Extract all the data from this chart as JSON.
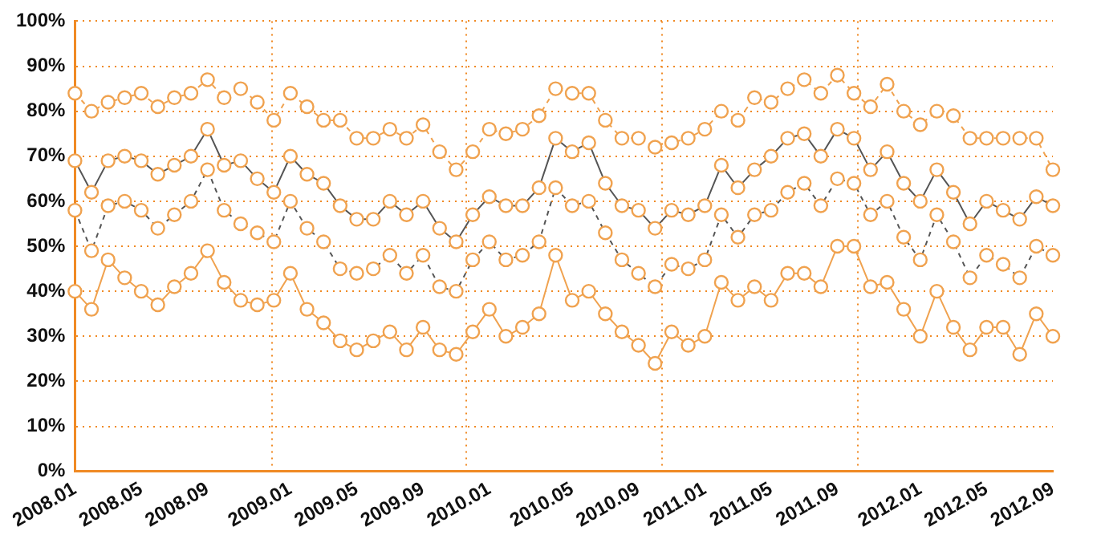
{
  "chart_data": {
    "type": "line",
    "categories": [
      "2008.01",
      null,
      null,
      null,
      "2008.05",
      null,
      null,
      null,
      "2008.09",
      null,
      null,
      null,
      null,
      "2009.01",
      null,
      null,
      null,
      "2009.05",
      null,
      null,
      null,
      "2009.09",
      null,
      null,
      null,
      "2010.01",
      null,
      null,
      null,
      null,
      "2010.05",
      null,
      null,
      null,
      "2010.09",
      null,
      null,
      null,
      "2011.01",
      null,
      null,
      null,
      "2011.05",
      null,
      null,
      null,
      "2011.09",
      null,
      null,
      null,
      null,
      "2012.01",
      null,
      null,
      null,
      "2012.05",
      null,
      null,
      null,
      "2012.09"
    ],
    "series": [
      {
        "color": "#f0a24f",
        "line_style": "dashed",
        "values": [
          84,
          80,
          82,
          83,
          84,
          81,
          83,
          84,
          87,
          83,
          85,
          82,
          78,
          84,
          81,
          78,
          78,
          74,
          74,
          76,
          74,
          77,
          71,
          67,
          71,
          76,
          75,
          76,
          79,
          85,
          84,
          84,
          78,
          74,
          74,
          72,
          73,
          74,
          76,
          80,
          78,
          83,
          82,
          85,
          87,
          84,
          88,
          84,
          81,
          86,
          80,
          77,
          80,
          79,
          74,
          74,
          74,
          74,
          74,
          67
        ]
      },
      {
        "color": "#555555",
        "line_style": "solid",
        "values": [
          69,
          62,
          69,
          70,
          69,
          66,
          68,
          70,
          76,
          68,
          69,
          65,
          62,
          70,
          66,
          64,
          59,
          56,
          56,
          60,
          57,
          60,
          54,
          51,
          57,
          61,
          59,
          59,
          63,
          74,
          71,
          73,
          64,
          59,
          58,
          54,
          58,
          57,
          59,
          68,
          63,
          67,
          70,
          74,
          75,
          70,
          76,
          74,
          67,
          71,
          64,
          60,
          67,
          62,
          55,
          60,
          58,
          56,
          61,
          59
        ]
      },
      {
        "color": "#555555",
        "line_style": "dashed",
        "values": [
          58,
          49,
          59,
          60,
          58,
          54,
          57,
          60,
          67,
          58,
          55,
          53,
          51,
          60,
          54,
          51,
          45,
          44,
          45,
          48,
          44,
          48,
          41,
          40,
          47,
          51,
          47,
          48,
          51,
          63,
          59,
          60,
          53,
          47,
          44,
          41,
          46,
          45,
          47,
          57,
          52,
          57,
          58,
          62,
          64,
          59,
          65,
          64,
          57,
          60,
          52,
          47,
          57,
          51,
          43,
          48,
          46,
          43,
          50,
          48
        ]
      },
      {
        "color": "#f0a24f",
        "line_style": "solid",
        "values": [
          40,
          36,
          47,
          43,
          40,
          37,
          41,
          44,
          49,
          42,
          38,
          37,
          38,
          44,
          36,
          33,
          29,
          27,
          29,
          31,
          27,
          32,
          27,
          26,
          31,
          36,
          30,
          32,
          35,
          48,
          38,
          40,
          35,
          31,
          28,
          24,
          31,
          28,
          30,
          42,
          38,
          41,
          38,
          44,
          44,
          41,
          50,
          50,
          41,
          42,
          36,
          30,
          40,
          32,
          27,
          32,
          32,
          26,
          35,
          30
        ]
      }
    ],
    "ylim": [
      0,
      100
    ],
    "yticks": [
      {
        "value": 0,
        "label": "0%"
      },
      {
        "value": 10,
        "label": "10%"
      },
      {
        "value": 20,
        "label": "20%"
      },
      {
        "value": 30,
        "label": "30%"
      },
      {
        "value": 40,
        "label": "40%"
      },
      {
        "value": 50,
        "label": "50%"
      },
      {
        "value": 60,
        "label": "60%"
      },
      {
        "value": 70,
        "label": "70%"
      },
      {
        "value": 80,
        "label": "80%"
      },
      {
        "value": 90,
        "label": "90%"
      },
      {
        "value": 100,
        "label": "100%"
      }
    ],
    "grid": true,
    "legend": false,
    "marker": "circle"
  }
}
